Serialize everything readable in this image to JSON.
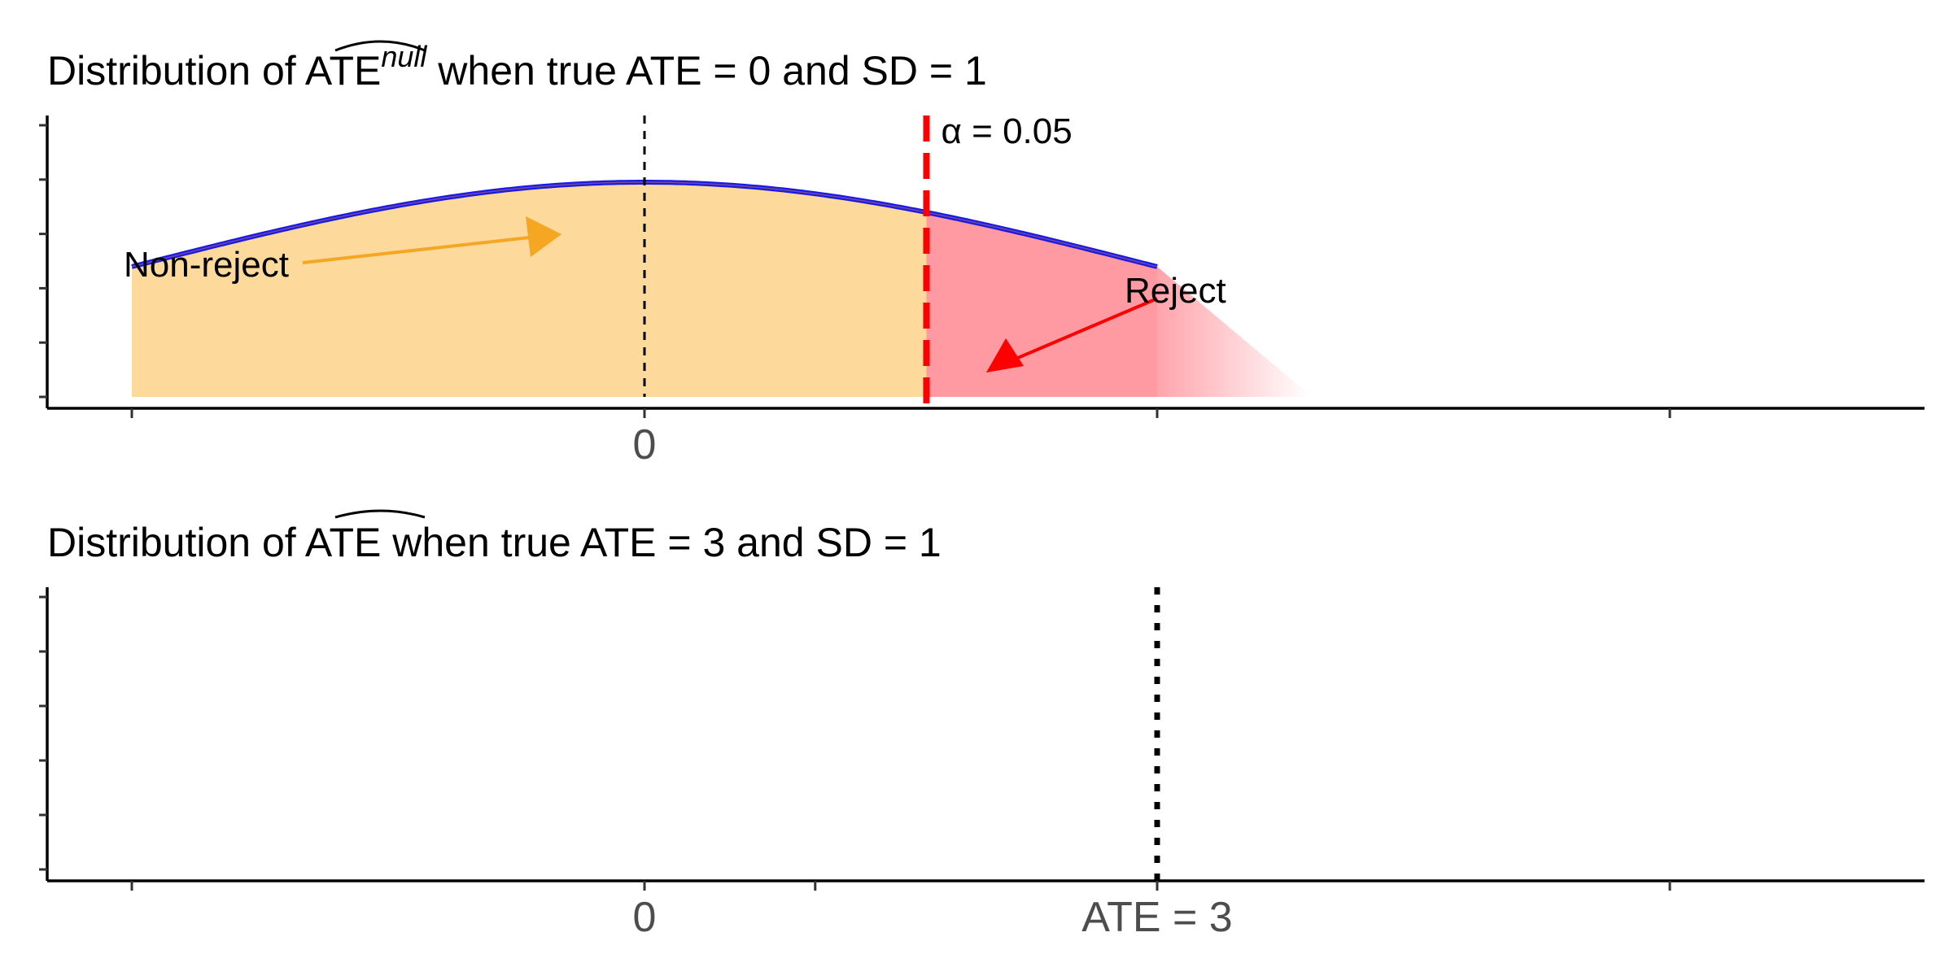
{
  "chart_data": [
    {
      "type": "area",
      "title_parts": {
        "prefix": "Distribution of ",
        "symbol": "ATE",
        "superscript": "null",
        "suffix": " when true ATE = 0 and SD = 1"
      },
      "distribution": {
        "kind": "normal",
        "mean": 0,
        "sd": 1
      },
      "xlim": [
        -1,
        2.5
      ],
      "curve_x_range": [
        -1,
        1
      ],
      "x_ticks": [
        -1,
        0,
        1,
        2
      ],
      "x_tick_labels": [
        "",
        "0",
        "",
        ""
      ],
      "y_tick_count": 6,
      "critical_value": 0.55,
      "mean_line": 0,
      "regions": [
        {
          "name": "Non-reject",
          "from": -1,
          "to": 0.55,
          "color": "#fdd99b"
        },
        {
          "name": "Reject",
          "from": 0.55,
          "to": 1.3,
          "color": "#ff9aa2"
        }
      ],
      "annotations": {
        "alpha_label": "α = 0.05",
        "non_reject_label": "Non-reject",
        "reject_label": "Reject"
      },
      "colors": {
        "curve": "#1a1ae6",
        "non_reject_fill": "#fdd99b",
        "reject_fill": "#ff9aa2",
        "critical_line": "#ff0000",
        "non_reject_arrow": "#f5a623",
        "reject_arrow": "#ff0000",
        "mean_line": "#000000"
      }
    },
    {
      "type": "area",
      "title_parts": {
        "prefix": "Distribution of ",
        "symbol": "ATE",
        "superscript": "",
        "suffix": " when true ATE = 3 and SD = 1"
      },
      "distribution": {
        "kind": "normal",
        "mean": 3,
        "sd": 1
      },
      "xlim": [
        -1,
        2.5
      ],
      "x_ticks": [
        -1,
        0,
        0.333,
        1,
        2
      ],
      "x_tick_labels": [
        "",
        "0",
        "",
        "",
        ""
      ],
      "y_tick_count": 6,
      "reference_line": 1,
      "reference_label": "ATE = 3",
      "colors": {
        "reference_line": "#000000"
      }
    }
  ]
}
